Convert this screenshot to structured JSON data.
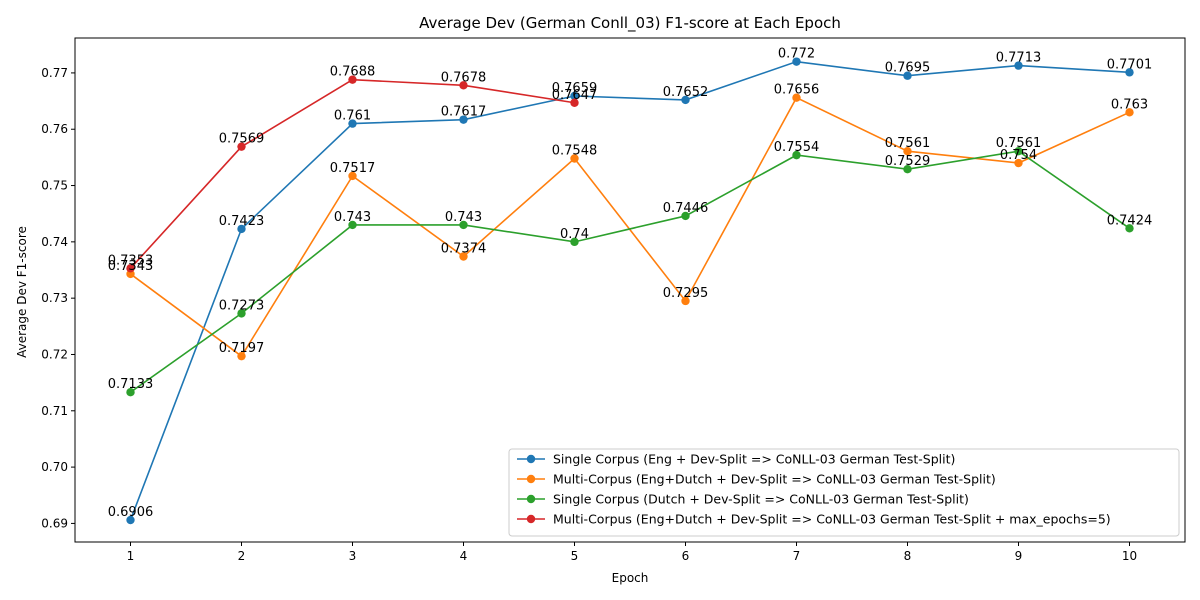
{
  "chart_data": {
    "type": "line",
    "title": "Average Dev (German Conll_03) F1-score at Each Epoch",
    "xlabel": "Epoch",
    "ylabel": "Average Dev F1-score",
    "x": [
      1,
      2,
      3,
      4,
      5,
      6,
      7,
      8,
      9,
      10
    ],
    "xlim": [
      0.5,
      10.5
    ],
    "ylim": [
      0.6867,
      0.7762
    ],
    "yticks": [
      0.69,
      0.7,
      0.71,
      0.72,
      0.73,
      0.74,
      0.75,
      0.76,
      0.77
    ],
    "ytick_labels": [
      "0.69",
      "0.70",
      "0.71",
      "0.72",
      "0.73",
      "0.74",
      "0.75",
      "0.76",
      "0.77"
    ],
    "grid": false,
    "legend_position": "lower-right",
    "marker": "circle",
    "series": [
      {
        "name": "Single Corpus (Eng + Dev-Split => CoNLL-03 German Test-Split)",
        "color": "#1f77b4",
        "x": [
          1,
          2,
          3,
          4,
          5,
          6,
          7,
          8,
          9,
          10
        ],
        "values": [
          0.6906,
          0.7423,
          0.761,
          0.7617,
          0.7659,
          0.7652,
          0.772,
          0.7695,
          0.7713,
          0.7701
        ],
        "labels": [
          "0.6906",
          "0.7423",
          "0.761",
          "0.7617",
          "0.7659",
          "0.7652",
          "0.772",
          "0.7695",
          "0.7713",
          "0.7701"
        ]
      },
      {
        "name": "Multi-Corpus (Eng+Dutch + Dev-Split => CoNLL-03 German Test-Split)",
        "color": "#ff7f0e",
        "x": [
          1,
          2,
          3,
          4,
          5,
          6,
          7,
          8,
          9,
          10
        ],
        "values": [
          0.7343,
          0.7197,
          0.7517,
          0.7374,
          0.7548,
          0.7295,
          0.7656,
          0.7561,
          0.754,
          0.763
        ],
        "labels": [
          "0.7343",
          "0.7197",
          "0.7517",
          "0.7374",
          "0.7548",
          "0.7295",
          "0.7656",
          "0.7561",
          "0.754",
          "0.763"
        ]
      },
      {
        "name": "Single Corpus (Dutch + Dev-Split => CoNLL-03 German Test-Split)",
        "color": "#2ca02c",
        "x": [
          1,
          2,
          3,
          4,
          5,
          6,
          7,
          8,
          9,
          10
        ],
        "values": [
          0.7133,
          0.7273,
          0.743,
          0.743,
          0.74,
          0.7446,
          0.7554,
          0.7529,
          0.7561,
          0.7424
        ],
        "labels": [
          "0.7133",
          "0.7273",
          "0.743",
          "0.743",
          "0.74",
          "0.7446",
          "0.7554",
          "0.7529",
          "0.7561",
          "0.7424"
        ]
      },
      {
        "name": "Multi-Corpus (Eng+Dutch + Dev-Split => CoNLL-03 German Test-Split + max_epochs=5)",
        "color": "#d62728",
        "x": [
          1,
          2,
          3,
          4,
          5
        ],
        "values": [
          0.7353,
          0.7569,
          0.7688,
          0.7678,
          0.7647
        ],
        "labels": [
          "0.7353",
          "0.7569",
          "0.7688",
          "0.7678",
          "0.7647"
        ]
      }
    ]
  }
}
